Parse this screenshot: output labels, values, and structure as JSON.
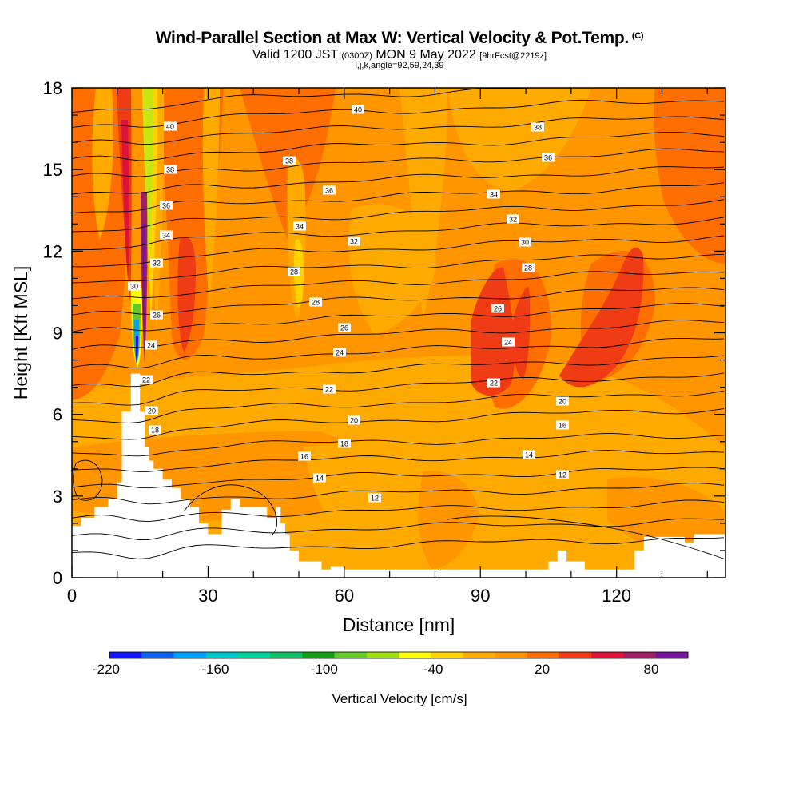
{
  "chart_data": {
    "type": "heatmap",
    "title": "Wind-Parallel Section at Max W: Vertical Velocity & Pot.Temp.",
    "title_mark": "(C)",
    "subtitle_main_a": "Valid 1200 JST",
    "subtitle_small_a": "(0300Z)",
    "subtitle_main_b": "MON 9 May 2022",
    "subtitle_small_b": "[9hrFcst@2219z]",
    "subtitle2": "i,j,k,angle=92,59,24,39",
    "xlabel": "Distance [nm]",
    "ylabel": "Height [Kft MSL]",
    "xlim": [
      0,
      144
    ],
    "ylim": [
      0,
      18
    ],
    "xticks": [
      "0",
      "30",
      "60",
      "90",
      "120"
    ],
    "yticks": [
      "0",
      "3",
      "6",
      "9",
      "12",
      "15",
      "18"
    ],
    "colorbar": {
      "label": "Vertical Velocity [cm/s]",
      "tick_labels": [
        "-220",
        "-160",
        "-100",
        "-40",
        "20",
        "80"
      ],
      "colors": [
        "#1414ff",
        "#0a64f0",
        "#00a0ff",
        "#00c8c8",
        "#00d2a0",
        "#14be64",
        "#14a014",
        "#64c828",
        "#a0dc14",
        "#ffff00",
        "#ffd200",
        "#ffaa00",
        "#ff9600",
        "#ff6e00",
        "#f03c14",
        "#dc143c",
        "#a01e64",
        "#7814a0"
      ]
    },
    "contour_levels": [
      12,
      14,
      16,
      18,
      20,
      22,
      24,
      26,
      28,
      30,
      32,
      34,
      36,
      38,
      40
    ],
    "contour_labels": [
      "40",
      "40",
      "38",
      "38",
      "38",
      "36",
      "36",
      "36",
      "34",
      "34",
      "34",
      "32",
      "32",
      "32",
      "30",
      "30",
      "28",
      "28",
      "28",
      "26",
      "26",
      "26",
      "24",
      "24",
      "24",
      "22",
      "22",
      "22",
      "20",
      "20",
      "20",
      "18",
      "18",
      "16",
      "16",
      "14",
      "14",
      "12",
      "12"
    ]
  }
}
